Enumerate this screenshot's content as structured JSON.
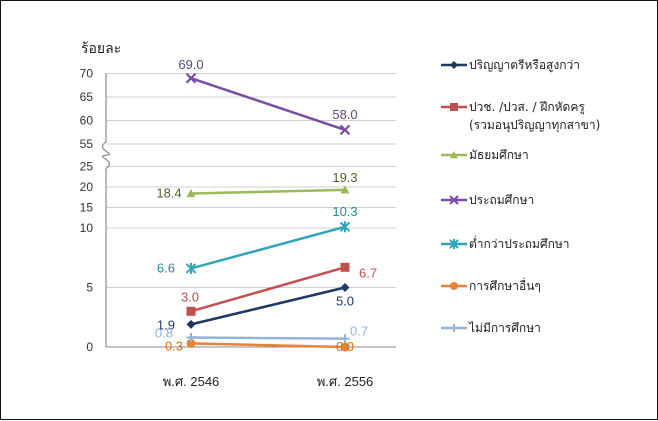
{
  "chart_data": {
    "type": "line",
    "y_unit": "ร้อยละ",
    "categories": [
      "พ.ศ. 2546",
      "พ.ศ. 2556"
    ],
    "y_axis_segments": [
      {
        "ticks": [
          0,
          5,
          10
        ]
      },
      {
        "ticks": [
          10,
          15,
          20,
          25
        ]
      },
      {
        "ticks": [
          55,
          60,
          65,
          70
        ]
      }
    ],
    "axis_break": [
      25,
      55
    ],
    "grid": true,
    "legend_position": "right",
    "series": [
      {
        "name": "ปริญญาตรีหรือสูงกว่า",
        "color": "#1F3864",
        "marker": "diamond",
        "values": [
          1.9,
          5.0
        ],
        "labels": [
          "1.9",
          "5.0"
        ],
        "label_colors": [
          "#1F3864",
          "#1F3864"
        ]
      },
      {
        "name": "ปวช. /ปวส. / ฝึกหัดครู",
        "name_line2": "(รวมอนุปริญญาทุกสาขา)",
        "color": "#C0504D",
        "marker": "square",
        "values": [
          3.0,
          6.7
        ],
        "labels": [
          "3.0",
          "6.7"
        ],
        "label_colors": [
          "#C0504D",
          "#C0504D"
        ]
      },
      {
        "name": "มัธยมศึกษา",
        "color": "#9BBB59",
        "marker": "triangle",
        "values": [
          18.4,
          19.3
        ],
        "labels": [
          "18.4",
          "19.3"
        ],
        "label_colors": [
          "#4F6228",
          "#4F6228"
        ]
      },
      {
        "name": "ประถมศึกษา",
        "color": "#7A4FA3",
        "marker": "x",
        "values": [
          69.0,
          58.0
        ],
        "labels": [
          "69.0",
          "58.0"
        ],
        "label_colors": [
          "#5F497A",
          "#5F497A"
        ]
      },
      {
        "name": "ต่ำกว่าประถมศึกษา",
        "color": "#31A5B8",
        "marker": "star",
        "values": [
          6.6,
          10.3
        ],
        "labels": [
          "6.6",
          "10.3"
        ],
        "label_colors": [
          "#31859C",
          "#31859C"
        ]
      },
      {
        "name": "การศึกษาอื่นๆ",
        "color": "#E8823C",
        "marker": "circle",
        "values": [
          0.3,
          0.0
        ],
        "labels": [
          "0.3",
          "0.0"
        ],
        "label_colors": [
          "#E36C09",
          "#E36C09"
        ]
      },
      {
        "name": "ไม่มีการศึกษา",
        "color": "#95B3D7",
        "marker": "plus",
        "values": [
          0.8,
          0.7
        ],
        "labels": [
          "0.8",
          "0.7"
        ],
        "label_colors": [
          "#8EB4E3",
          "#8EB4E3"
        ]
      }
    ]
  }
}
